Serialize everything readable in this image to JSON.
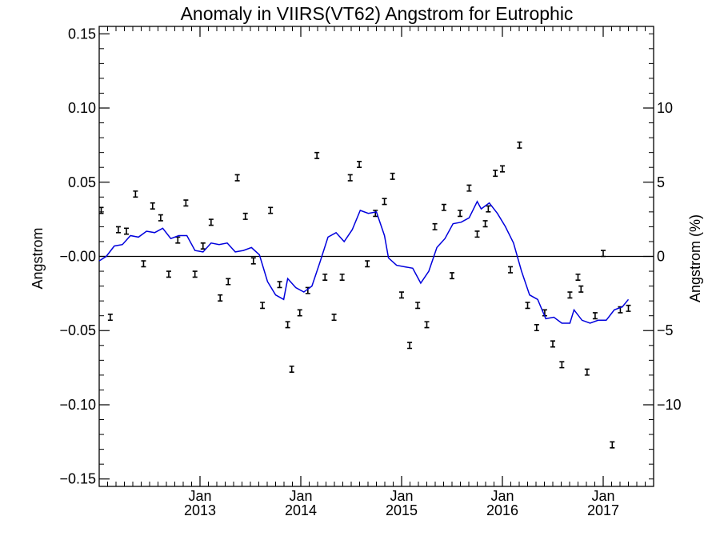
{
  "chart_data": {
    "type": "line",
    "title": "Anomaly in VIIRS(VT62) Angstrom for Eutrophic",
    "ylabel": "Angstrom",
    "ylabel_right": "Angstrom (%)",
    "xlim": [
      2012.0,
      2017.5
    ],
    "ylim": [
      -0.155,
      0.155
    ],
    "ylim_right": [
      -15.5,
      15.5
    ],
    "x_ticks": [
      {
        "x": 2013.0,
        "top": "Jan",
        "bottom": "2013"
      },
      {
        "x": 2014.0,
        "top": "Jan",
        "bottom": "2014"
      },
      {
        "x": 2015.0,
        "top": "Jan",
        "bottom": "2015"
      },
      {
        "x": 2016.0,
        "top": "Jan",
        "bottom": "2016"
      },
      {
        "x": 2017.0,
        "top": "Jan",
        "bottom": "2017"
      }
    ],
    "y_ticks": [
      {
        "v": 0.15,
        "label": "0.15"
      },
      {
        "v": 0.1,
        "label": "0.10"
      },
      {
        "v": 0.05,
        "label": "0.05"
      },
      {
        "v": 0.0,
        "label": "−0.00"
      },
      {
        "v": -0.05,
        "label": "−0.05"
      },
      {
        "v": -0.1,
        "label": "−0.10"
      },
      {
        "v": -0.15,
        "label": "−0.15"
      }
    ],
    "y_ticks_right": [
      {
        "v": 10,
        "label": "10"
      },
      {
        "v": 5,
        "label": "5"
      },
      {
        "v": 0,
        "label": "0"
      },
      {
        "v": -5,
        "label": "−5"
      },
      {
        "v": -10,
        "label": "−10"
      }
    ],
    "zero_line": true,
    "grid": false,
    "series": [
      {
        "kind": "errorbar",
        "color": "#000000",
        "error": 0.002,
        "points": [
          {
            "x": 2012.02,
            "y": 0.031
          },
          {
            "x": 2012.11,
            "y": -0.041
          },
          {
            "x": 2012.19,
            "y": 0.018
          },
          {
            "x": 2012.27,
            "y": 0.017
          },
          {
            "x": 2012.36,
            "y": 0.042
          },
          {
            "x": 2012.44,
            "y": -0.005
          },
          {
            "x": 2012.53,
            "y": 0.034
          },
          {
            "x": 2012.61,
            "y": 0.026
          },
          {
            "x": 2012.69,
            "y": -0.012
          },
          {
            "x": 2012.78,
            "y": 0.011
          },
          {
            "x": 2012.86,
            "y": 0.036
          },
          {
            "x": 2012.95,
            "y": -0.012
          },
          {
            "x": 2013.03,
            "y": 0.007
          },
          {
            "x": 2013.11,
            "y": 0.023
          },
          {
            "x": 2013.2,
            "y": -0.028
          },
          {
            "x": 2013.28,
            "y": -0.017
          },
          {
            "x": 2013.37,
            "y": 0.053
          },
          {
            "x": 2013.45,
            "y": 0.027
          },
          {
            "x": 2013.53,
            "y": -0.003
          },
          {
            "x": 2013.62,
            "y": -0.033
          },
          {
            "x": 2013.7,
            "y": 0.031
          },
          {
            "x": 2013.79,
            "y": -0.019
          },
          {
            "x": 2013.87,
            "y": -0.046
          },
          {
            "x": 2013.91,
            "y": -0.076
          },
          {
            "x": 2013.99,
            "y": -0.038
          },
          {
            "x": 2014.07,
            "y": -0.023
          },
          {
            "x": 2014.16,
            "y": 0.068
          },
          {
            "x": 2014.24,
            "y": -0.014
          },
          {
            "x": 2014.33,
            "y": -0.041
          },
          {
            "x": 2014.41,
            "y": -0.014
          },
          {
            "x": 2014.49,
            "y": 0.053
          },
          {
            "x": 2014.58,
            "y": 0.062
          },
          {
            "x": 2014.66,
            "y": -0.005
          },
          {
            "x": 2014.74,
            "y": 0.029
          },
          {
            "x": 2014.83,
            "y": 0.037
          },
          {
            "x": 2014.91,
            "y": 0.054
          },
          {
            "x": 2015.0,
            "y": -0.026
          },
          {
            "x": 2015.08,
            "y": -0.06
          },
          {
            "x": 2015.16,
            "y": -0.033
          },
          {
            "x": 2015.25,
            "y": -0.046
          },
          {
            "x": 2015.33,
            "y": 0.02
          },
          {
            "x": 2015.42,
            "y": 0.033
          },
          {
            "x": 2015.5,
            "y": -0.013
          },
          {
            "x": 2015.58,
            "y": 0.029
          },
          {
            "x": 2015.67,
            "y": 0.046
          },
          {
            "x": 2015.75,
            "y": 0.015
          },
          {
            "x": 2015.83,
            "y": 0.022
          },
          {
            "x": 2015.86,
            "y": 0.032
          },
          {
            "x": 2015.93,
            "y": 0.056
          },
          {
            "x": 2016.0,
            "y": 0.059
          },
          {
            "x": 2016.08,
            "y": -0.009
          },
          {
            "x": 2016.17,
            "y": 0.075
          },
          {
            "x": 2016.25,
            "y": -0.033
          },
          {
            "x": 2016.34,
            "y": -0.048
          },
          {
            "x": 2016.42,
            "y": -0.038
          },
          {
            "x": 2016.5,
            "y": -0.059
          },
          {
            "x": 2016.59,
            "y": -0.073
          },
          {
            "x": 2016.67,
            "y": -0.026
          },
          {
            "x": 2016.75,
            "y": -0.014
          },
          {
            "x": 2016.78,
            "y": -0.022
          },
          {
            "x": 2016.84,
            "y": -0.078
          },
          {
            "x": 2016.92,
            "y": -0.04
          },
          {
            "x": 2017.0,
            "y": 0.002
          },
          {
            "x": 2017.09,
            "y": -0.127
          },
          {
            "x": 2017.17,
            "y": -0.036
          },
          {
            "x": 2017.25,
            "y": -0.035
          }
        ]
      },
      {
        "kind": "line",
        "color": "#0000dd",
        "points": [
          {
            "x": 2012.0,
            "y": -0.003
          },
          {
            "x": 2012.07,
            "y": 0.0
          },
          {
            "x": 2012.15,
            "y": 0.007
          },
          {
            "x": 2012.23,
            "y": 0.008
          },
          {
            "x": 2012.31,
            "y": 0.014
          },
          {
            "x": 2012.39,
            "y": 0.013
          },
          {
            "x": 2012.47,
            "y": 0.017
          },
          {
            "x": 2012.55,
            "y": 0.016
          },
          {
            "x": 2012.63,
            "y": 0.019
          },
          {
            "x": 2012.71,
            "y": 0.012
          },
          {
            "x": 2012.79,
            "y": 0.014
          },
          {
            "x": 2012.87,
            "y": 0.014
          },
          {
            "x": 2012.95,
            "y": 0.004
          },
          {
            "x": 2013.03,
            "y": 0.003
          },
          {
            "x": 2013.11,
            "y": 0.009
          },
          {
            "x": 2013.19,
            "y": 0.008
          },
          {
            "x": 2013.27,
            "y": 0.009
          },
          {
            "x": 2013.35,
            "y": 0.003
          },
          {
            "x": 2013.43,
            "y": 0.004
          },
          {
            "x": 2013.51,
            "y": 0.006
          },
          {
            "x": 2013.59,
            "y": 0.001
          },
          {
            "x": 2013.67,
            "y": -0.017
          },
          {
            "x": 2013.75,
            "y": -0.026
          },
          {
            "x": 2013.83,
            "y": -0.029
          },
          {
            "x": 2013.87,
            "y": -0.015
          },
          {
            "x": 2013.95,
            "y": -0.021
          },
          {
            "x": 2014.03,
            "y": -0.024
          },
          {
            "x": 2014.11,
            "y": -0.02
          },
          {
            "x": 2014.19,
            "y": -0.004
          },
          {
            "x": 2014.27,
            "y": 0.013
          },
          {
            "x": 2014.35,
            "y": 0.016
          },
          {
            "x": 2014.43,
            "y": 0.01
          },
          {
            "x": 2014.51,
            "y": 0.018
          },
          {
            "x": 2014.59,
            "y": 0.031
          },
          {
            "x": 2014.67,
            "y": 0.029
          },
          {
            "x": 2014.75,
            "y": 0.03
          },
          {
            "x": 2014.83,
            "y": 0.014
          },
          {
            "x": 2014.87,
            "y": -0.001
          },
          {
            "x": 2014.95,
            "y": -0.006
          },
          {
            "x": 2015.03,
            "y": -0.007
          },
          {
            "x": 2015.11,
            "y": -0.008
          },
          {
            "x": 2015.19,
            "y": -0.018
          },
          {
            "x": 2015.27,
            "y": -0.01
          },
          {
            "x": 2015.35,
            "y": 0.006
          },
          {
            "x": 2015.43,
            "y": 0.012
          },
          {
            "x": 2015.51,
            "y": 0.022
          },
          {
            "x": 2015.59,
            "y": 0.023
          },
          {
            "x": 2015.67,
            "y": 0.026
          },
          {
            "x": 2015.75,
            "y": 0.037
          },
          {
            "x": 2015.79,
            "y": 0.032
          },
          {
            "x": 2015.87,
            "y": 0.036
          },
          {
            "x": 2015.95,
            "y": 0.029
          },
          {
            "x": 2016.03,
            "y": 0.02
          },
          {
            "x": 2016.11,
            "y": 0.009
          },
          {
            "x": 2016.19,
            "y": -0.01
          },
          {
            "x": 2016.27,
            "y": -0.026
          },
          {
            "x": 2016.35,
            "y": -0.029
          },
          {
            "x": 2016.43,
            "y": -0.042
          },
          {
            "x": 2016.51,
            "y": -0.041
          },
          {
            "x": 2016.59,
            "y": -0.045
          },
          {
            "x": 2016.67,
            "y": -0.045
          },
          {
            "x": 2016.71,
            "y": -0.036
          },
          {
            "x": 2016.79,
            "y": -0.043
          },
          {
            "x": 2016.87,
            "y": -0.045
          },
          {
            "x": 2016.95,
            "y": -0.043
          },
          {
            "x": 2017.03,
            "y": -0.043
          },
          {
            "x": 2017.11,
            "y": -0.036
          },
          {
            "x": 2017.19,
            "y": -0.034
          },
          {
            "x": 2017.25,
            "y": -0.029
          }
        ]
      }
    ]
  }
}
